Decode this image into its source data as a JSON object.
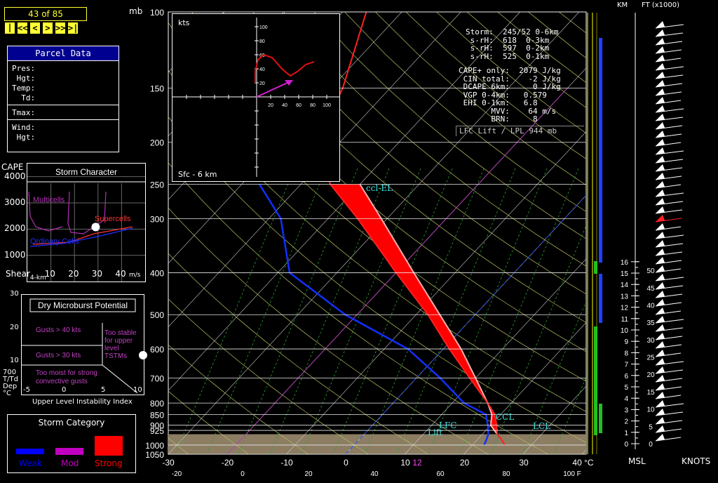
{
  "toolbar": {
    "frame_counter": "43 of 85",
    "nav_buttons": [
      {
        "id": "first",
        "label": "|<"
      },
      {
        "id": "rewind",
        "label": "<<"
      },
      {
        "id": "prev",
        "label": "<"
      },
      {
        "id": "next",
        "label": ">"
      },
      {
        "id": "forward",
        "label": ">>"
      },
      {
        "id": "last",
        "label": ">|"
      }
    ]
  },
  "parcel_panel": {
    "title": "Parcel Data",
    "rows_a": [
      "Pres:",
      " Hgt:",
      "Temp:",
      "  Td:"
    ],
    "rows_b": [
      "Tmax:"
    ],
    "rows_c": [
      "Wind:",
      " Hgt:"
    ]
  },
  "storm_character": {
    "title": "Storm Character",
    "cape_label": "CAPE",
    "shear_label": "Shear",
    "shear_sub": "4-km",
    "unit": "m/s",
    "y_ticks": [
      "4000",
      "3000",
      "2000",
      "1000"
    ],
    "x_ticks": [
      "10",
      "20",
      "30",
      "40"
    ],
    "regions": {
      "multicells": "Multicells",
      "supercells": "Supercells",
      "ordinary": "Ordinary Cells"
    },
    "colors": {
      "multicells": "#b030b0",
      "supercells": "#ff3030",
      "ordinary": "#2030ff"
    },
    "point": {
      "shear": 29,
      "cape": 2079
    }
  },
  "microburst": {
    "title": "Dry Microburst Potential",
    "y_ticks": [
      "30",
      "20",
      "10"
    ],
    "x_ticks": [
      "-5",
      "0",
      "5",
      "10"
    ],
    "y_label_lines": [
      "700",
      "T/Td",
      "Dep",
      "°C"
    ],
    "x_label": "Upper Level Instability Index",
    "zones": {
      "gusts40": "Gusts > 40 kts",
      "gusts30": "Gusts > 30 kts",
      "too_stable": [
        "Too stable",
        "for upper",
        "level",
        "TSTMs"
      ],
      "too_moist": [
        "Too moist for strong",
        "convective gusts"
      ]
    }
  },
  "storm_category": {
    "title": "Storm Category",
    "items": [
      {
        "label": "Weak",
        "color": "#0000ff"
      },
      {
        "label": "Mod",
        "color": "#c000c0"
      },
      {
        "label": "Strong",
        "color": "#ff0000"
      }
    ]
  },
  "skewt": {
    "pressure_unit": "mb",
    "pressure_levels": [
      "100",
      "150",
      "200",
      "250",
      "300",
      "400",
      "500",
      "600",
      "700",
      "800",
      "850",
      "900",
      "925",
      "1000",
      "1050"
    ],
    "temp_c_ticks": [
      "-30",
      "-20",
      "-10",
      "0",
      "10",
      "20",
      "30",
      "40 °C"
    ],
    "temp_c_extra": "12",
    "temp_f_ticks": [
      "-20",
      "0",
      "20",
      "40",
      "60",
      "80",
      "100  F"
    ],
    "levels": {
      "ccl_el": "ccl-EL",
      "ccl": "CCL",
      "lfc": "LFC",
      "lcl": "LCL",
      "lift": "Lift"
    }
  },
  "hodograph": {
    "unit": "kts",
    "label": "Sfc - 6 km",
    "ticks": [
      "20",
      "40",
      "60",
      "80",
      "100"
    ]
  },
  "indices": {
    "storm_block": [
      "Storm:  245/52 0-6km",
      " s-rH:  618  0-3km",
      " s-rH:  597  0-2km",
      " s-rH:  525  0-1km"
    ],
    "params_block": [
      "CAPE+ only:  2079 J/kg",
      " CIN total:    -2 J/kg",
      " DCAPE 6km:     0 J/kg",
      " VGP 0-4km:   0.579",
      " EHI 0-1km:   6.8",
      "       MVV:    64 m/s",
      "       BRN:     8"
    ],
    "footer": "LFC Lift / LPL 944 mb"
  },
  "height_scale": {
    "km_label": "KM",
    "ft_label": "FT (x1000)",
    "km_ticks": [
      "16",
      "15",
      "14",
      "13",
      "12",
      "11",
      "10",
      "9",
      "8",
      "7",
      "6",
      "5",
      "4",
      "3",
      "2",
      "1",
      "0"
    ],
    "ft_ticks": [
      "50",
      "45",
      "40",
      "35",
      "30",
      "25",
      "20",
      "15",
      "10",
      "5",
      "0"
    ],
    "msl_label": "MSL",
    "knots_label": "KNOTS"
  },
  "chart_data": {
    "type": "line",
    "title": "",
    "xlabel": "°C",
    "ylabel": "mb",
    "ylim": [
      1050,
      100
    ],
    "xlim": [
      -30,
      40
    ],
    "series": [
      {
        "name": "",
        "values": [
          [
            1000,
            25.5
          ],
          [
            970,
            24
          ],
          [
            944,
            22.5
          ],
          [
            900,
            21
          ],
          [
            850,
            19
          ],
          [
            800,
            16
          ],
          [
            700,
            9
          ],
          [
            600,
            1
          ],
          [
            500,
            -8
          ],
          [
            400,
            -20
          ],
          [
            300,
            -35
          ],
          [
            250,
            -45
          ],
          [
            200,
            -54
          ],
          [
            150,
            -58
          ],
          [
            100,
            -66
          ]
        ]
      },
      {
        "name": "",
        "values": [
          [
            1000,
            22
          ],
          [
            970,
            21.5
          ],
          [
            944,
            21
          ],
          [
            900,
            19.5
          ],
          [
            850,
            17.5
          ],
          [
            800,
            12
          ],
          [
            700,
            4
          ],
          [
            600,
            -6
          ],
          [
            500,
            -22
          ],
          [
            400,
            -38
          ],
          [
            300,
            -48
          ],
          [
            250,
            -57
          ]
        ]
      }
    ]
  }
}
